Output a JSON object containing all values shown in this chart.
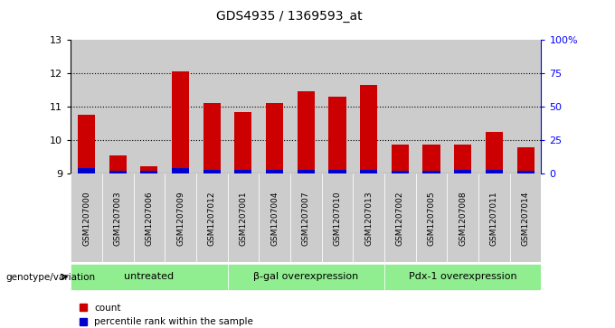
{
  "title": "GDS4935 / 1369593_at",
  "samples": [
    "GSM1207000",
    "GSM1207003",
    "GSM1207006",
    "GSM1207009",
    "GSM1207012",
    "GSM1207001",
    "GSM1207004",
    "GSM1207007",
    "GSM1207010",
    "GSM1207013",
    "GSM1207002",
    "GSM1207005",
    "GSM1207008",
    "GSM1207011",
    "GSM1207014"
  ],
  "counts": [
    10.75,
    9.55,
    9.22,
    12.05,
    11.1,
    10.85,
    11.1,
    11.45,
    11.3,
    11.65,
    9.88,
    9.88,
    9.88,
    10.25,
    9.78
  ],
  "percentile_ranks": [
    4,
    2,
    2,
    4,
    3,
    3,
    3,
    3,
    3,
    3,
    2,
    2,
    3,
    3,
    2
  ],
  "ymin": 9,
  "ymax": 13,
  "yticks": [
    9,
    10,
    11,
    12,
    13
  ],
  "right_yticks": [
    0,
    25,
    50,
    75,
    100
  ],
  "right_yticklabels": [
    "0",
    "25",
    "50",
    "75",
    "100%"
  ],
  "groups": [
    {
      "label": "untreated",
      "start": 0,
      "end": 4
    },
    {
      "label": "β-gal overexpression",
      "start": 5,
      "end": 9
    },
    {
      "label": "Pdx-1 overexpression",
      "start": 10,
      "end": 14
    }
  ],
  "group_color": "#90EE90",
  "bar_bg_color": "#cccccc",
  "red_color": "#cc0000",
  "blue_color": "#0000cc",
  "legend_label_count": "count",
  "legend_label_percentile": "percentile rank within the sample",
  "genotype_label": "genotype/variation"
}
